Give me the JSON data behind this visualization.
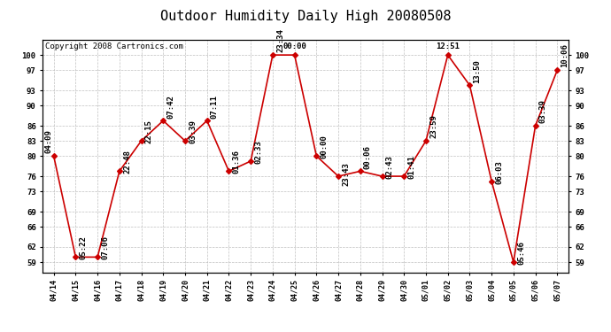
{
  "title": "Outdoor Humidity Daily High 20080508",
  "copyright": "Copyright 2008 Cartronics.com",
  "x_labels": [
    "04/14",
    "04/15",
    "04/16",
    "04/17",
    "04/18",
    "04/19",
    "04/20",
    "04/21",
    "04/22",
    "04/23",
    "04/24",
    "04/25",
    "04/26",
    "04/27",
    "04/28",
    "04/29",
    "04/30",
    "05/01",
    "05/02",
    "05/03",
    "05/04",
    "05/05",
    "05/06",
    "05/07"
  ],
  "y_values": [
    80,
    60,
    60,
    77,
    83,
    87,
    83,
    87,
    77,
    79,
    100,
    100,
    80,
    76,
    77,
    76,
    76,
    83,
    100,
    94,
    75,
    59,
    86,
    97
  ],
  "annotations": [
    "04:09",
    "05:22",
    "07:06",
    "22:48",
    "22:15",
    "07:42",
    "03:39",
    "07:11",
    "01:36",
    "02:33",
    "23:34",
    "00:00",
    "00:00",
    "23:43",
    "00:06",
    "02:43",
    "01:41",
    "23:59",
    "12:51",
    "13:50",
    "06:03",
    "05:46",
    "03:39",
    "10:06"
  ],
  "line_color": "#cc0000",
  "marker_color": "#cc0000",
  "bg_color": "#ffffff",
  "plot_bg_color": "#ffffff",
  "grid_color": "#c0c0c0",
  "y_ticks": [
    59,
    62,
    66,
    69,
    73,
    76,
    80,
    83,
    86,
    90,
    93,
    97,
    100
  ],
  "y_min": 57,
  "y_max": 103,
  "title_fontsize": 11,
  "annotation_fontsize": 6.5,
  "copyright_fontsize": 6.5
}
